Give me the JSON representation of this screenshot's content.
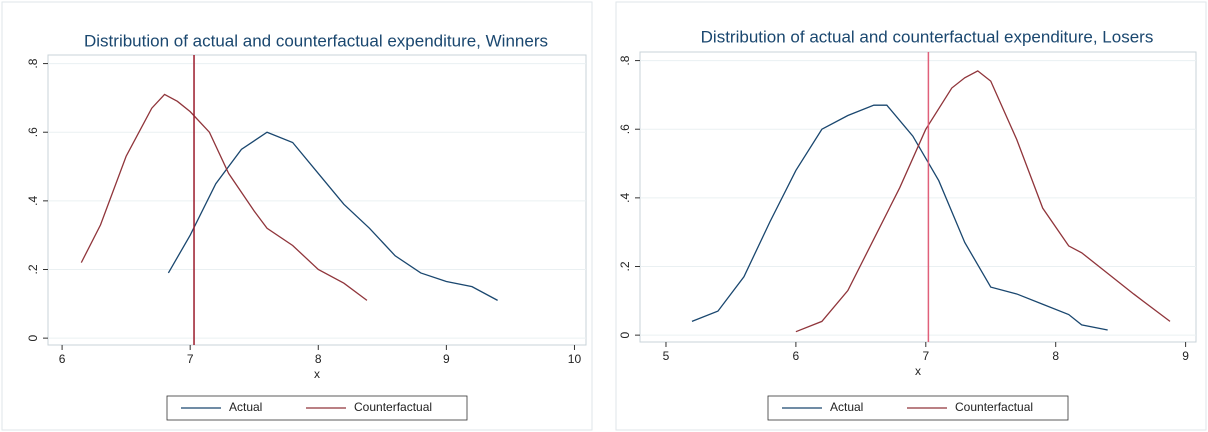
{
  "chart_data": [
    {
      "type": "line",
      "title": "Distribution of actual and counterfactual expenditure, Winners",
      "xlabel": "x",
      "xlim": [
        5.89,
        10.09
      ],
      "ylim": [
        -0.02,
        0.825
      ],
      "xticks": [
        6,
        7,
        8,
        9,
        10
      ],
      "yticks": [
        0,
        {
          "value": 0.2,
          "label": ".2"
        },
        {
          "value": 0.4,
          "label": ".4"
        },
        {
          "value": 0.6,
          "label": ".6"
        },
        {
          "value": 0.8,
          "label": ".8"
        }
      ],
      "grid": true,
      "vline": 7.03,
      "vline_color": "#9b1c2c",
      "series": [
        {
          "name": "Actual",
          "color": "#1a476f",
          "x": [
            6.83,
            7.0,
            7.2,
            7.4,
            7.6,
            7.8,
            8.0,
            8.2,
            8.4,
            8.6,
            8.8,
            9.0,
            9.2,
            9.4
          ],
          "values": [
            0.19,
            0.3,
            0.45,
            0.55,
            0.6,
            0.57,
            0.48,
            0.39,
            0.32,
            0.24,
            0.19,
            0.165,
            0.15,
            0.11
          ]
        },
        {
          "name": "Counterfactual",
          "color": "#90353b",
          "x": [
            6.15,
            6.3,
            6.5,
            6.7,
            6.8,
            6.9,
            7.0,
            7.15,
            7.3,
            7.5,
            7.6,
            7.8,
            8.0,
            8.2,
            8.38
          ],
          "values": [
            0.22,
            0.33,
            0.53,
            0.67,
            0.71,
            0.69,
            0.66,
            0.6,
            0.48,
            0.37,
            0.32,
            0.27,
            0.2,
            0.16,
            0.11
          ]
        }
      ]
    },
    {
      "type": "line",
      "title": "Distribution of actual and counterfactual expenditure, Losers",
      "xlabel": "x",
      "xlim": [
        4.8,
        9.08
      ],
      "ylim": [
        -0.02,
        0.825
      ],
      "xticks": [
        5,
        6,
        7,
        8,
        9
      ],
      "yticks": [
        0,
        {
          "value": 0.2,
          "label": ".2"
        },
        {
          "value": 0.4,
          "label": ".4"
        },
        {
          "value": 0.6,
          "label": ".6"
        },
        {
          "value": 0.8,
          "label": ".8"
        }
      ],
      "grid": true,
      "vline": 7.02,
      "vline_color": "#e0607a",
      "series": [
        {
          "name": "Actual",
          "color": "#1a476f",
          "x": [
            5.2,
            5.4,
            5.6,
            5.8,
            6.0,
            6.2,
            6.4,
            6.6,
            6.7,
            6.9,
            7.1,
            7.3,
            7.5,
            7.7,
            7.9,
            8.1,
            8.2,
            8.4
          ],
          "values": [
            0.04,
            0.07,
            0.17,
            0.33,
            0.48,
            0.6,
            0.64,
            0.67,
            0.67,
            0.58,
            0.45,
            0.27,
            0.14,
            0.12,
            0.09,
            0.06,
            0.03,
            0.015
          ]
        },
        {
          "name": "Counterfactual",
          "color": "#90353b",
          "x": [
            6.0,
            6.2,
            6.4,
            6.6,
            6.8,
            7.0,
            7.2,
            7.3,
            7.4,
            7.5,
            7.7,
            7.9,
            8.1,
            8.2,
            8.4,
            8.6,
            8.88
          ],
          "values": [
            0.01,
            0.04,
            0.13,
            0.28,
            0.43,
            0.6,
            0.72,
            0.75,
            0.77,
            0.74,
            0.57,
            0.37,
            0.26,
            0.24,
            0.18,
            0.12,
            0.04
          ]
        }
      ]
    }
  ]
}
